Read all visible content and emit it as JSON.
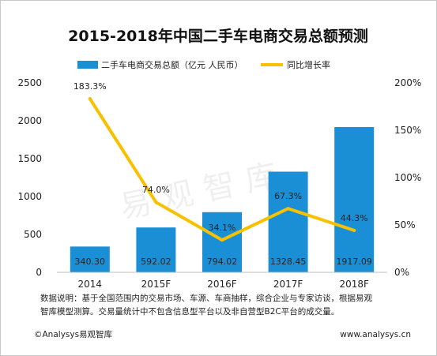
{
  "chart_data": {
    "type": "bar",
    "title": "2015-2018年中国二手车电商交易总额预测",
    "categories": [
      "2014",
      "2015F",
      "2016F",
      "2017F",
      "2018F"
    ],
    "series": [
      {
        "name": "二手车电商交易总额（亿元 人民币）",
        "type": "bar",
        "axis": "left",
        "color": "#1a8fd6",
        "values": [
          340.3,
          592.02,
          794.02,
          1328.45,
          1917.09
        ],
        "labels": [
          "340.30",
          "592.02",
          "794.02",
          "1328.45",
          "1917.09"
        ]
      },
      {
        "name": "同比增长率",
        "type": "line",
        "axis": "right",
        "color": "#f7c100",
        "values": [
          183.3,
          74.0,
          34.1,
          67.3,
          44.3
        ],
        "labels": [
          "183.3%",
          "74.0%",
          "34.1%",
          "67.3%",
          "44.3%"
        ]
      }
    ],
    "ylim_left": [
      0,
      2500
    ],
    "ylim_right": [
      0,
      200
    ],
    "yticks_left": [
      "0",
      "500",
      "1000",
      "1500",
      "2000",
      "2500"
    ],
    "yticks_right": [
      "0%",
      "50%",
      "100%",
      "150%",
      "200%"
    ],
    "grid": false,
    "legend_position": "top"
  },
  "watermark": "易观智库",
  "notes": [
    "数据说明：基于全国范围内的交易市场、车源、车商抽样，综合企业与专家访谈，根据易观",
    "智库模型测算。交易量统计中不包含信息型平台以及非自营型B2C平台的成交量。"
  ],
  "footer": {
    "left": "©Analysys易观智库",
    "right": "www.analysys.cn"
  }
}
